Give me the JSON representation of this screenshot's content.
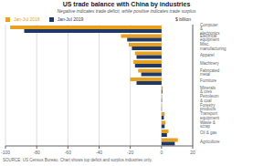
{
  "chart_data": {
    "type": "bar",
    "orientation": "horizontal",
    "title": "US trade balance with China by industries",
    "subtitle": "Negative indicates trade deficit, while positive indicates trade surplus",
    "source": "SOURCE: US Census Bureau. Chart shows top deficit and surplus industries only.",
    "xlabel": "$ billion",
    "categories": [
      "Computer & electronics",
      "Electrical equipment",
      "Misc. manufacturing",
      "Apparel",
      "Machinery",
      "Fabricated metal",
      "Furniture",
      "Minerals & ores",
      "Petroleum & coal",
      "Forestry products",
      "Transport equipment",
      "Waste & scrap",
      "Oil & gas",
      "Agriculture"
    ],
    "series": [
      {
        "name": "Jan-Jul 2018",
        "color": "#e8a020",
        "values": [
          -97,
          -26,
          -21,
          -17,
          -18,
          -15,
          -20,
          0.8,
          0.4,
          0.3,
          2.0,
          2.5,
          4.5,
          10.5
        ]
      },
      {
        "name": "Jan-Jul 2019",
        "color": "#1f3864",
        "values": [
          -88,
          -22,
          -19,
          -16,
          -17,
          -13,
          -16,
          0.5,
          0.3,
          0.2,
          1.5,
          2.0,
          3.5,
          8.5
        ]
      }
    ],
    "xlim": [
      -100,
      20
    ],
    "xticks": [
      -100,
      -80,
      -60,
      -40,
      -20,
      0,
      20
    ],
    "grid": true,
    "legend": "upper left"
  }
}
